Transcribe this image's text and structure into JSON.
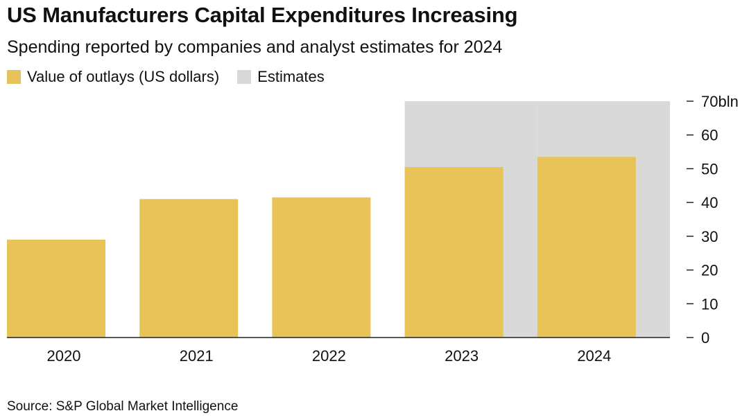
{
  "title": "US Manufacturers Capital Expenditures Increasing",
  "subtitle": "Spending reported by companies and analyst estimates for 2024",
  "legend": [
    {
      "label": "Value of outlays (US dollars)",
      "color": "#e8c357"
    },
    {
      "label": "Estimates",
      "color": "#d9d9d9"
    }
  ],
  "source": "Source: S&P Global Market Intelligence",
  "chart_data": {
    "type": "bar",
    "title": "US Manufacturers Capital Expenditures Increasing",
    "subtitle": "Spending reported by companies and analyst estimates for 2024",
    "categories": [
      "2020",
      "2021",
      "2022",
      "2023",
      "2024"
    ],
    "series": [
      {
        "name": "Value of outlays (US dollars)",
        "color": "#e8c357",
        "values": [
          29,
          41,
          41.5,
          50.5,
          53.5
        ]
      },
      {
        "name": "Estimates",
        "color": "#d9d9d9",
        "values": [
          null,
          null,
          null,
          70,
          70
        ]
      }
    ],
    "ylim": [
      0,
      70
    ],
    "yticks": [
      0,
      10,
      20,
      30,
      40,
      50,
      60,
      70
    ],
    "ytick_labels": [
      "0",
      "10",
      "20",
      "30",
      "40",
      "50",
      "60",
      "70bln"
    ],
    "xlabel": "",
    "ylabel": "",
    "yaxis_position": "right",
    "grid": false,
    "legend_position": "top-left"
  }
}
